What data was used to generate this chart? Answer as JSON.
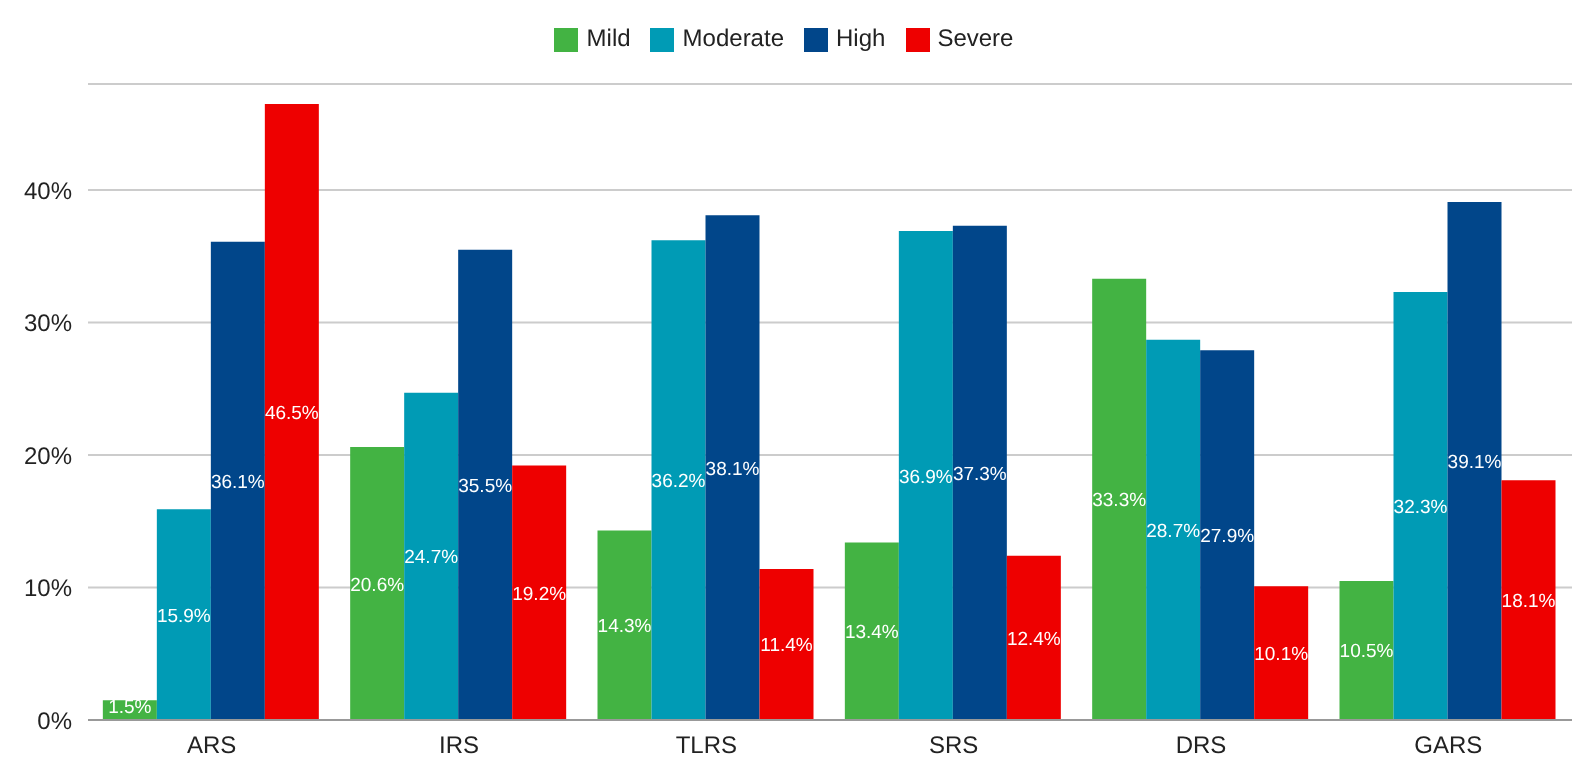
{
  "chart_data": {
    "type": "bar",
    "categories": [
      "ARS",
      "IRS",
      "TLRS",
      "SRS",
      "DRS",
      "GARS"
    ],
    "series": [
      {
        "name": "Mild",
        "color": "#43b343",
        "values": [
          1.5,
          20.6,
          14.3,
          13.4,
          33.3,
          10.5
        ],
        "value_labels": [
          "1.5%",
          "20.6%",
          "14.3%",
          "13.4%",
          "33.3%",
          "10.5%"
        ]
      },
      {
        "name": "Moderate",
        "color": "#009bb5",
        "values": [
          15.9,
          24.7,
          36.2,
          36.9,
          28.7,
          32.3
        ],
        "value_labels": [
          "15.9%",
          "24.7%",
          "36.2%",
          "36.9%",
          "28.7%",
          "32.3%"
        ]
      },
      {
        "name": "High",
        "color": "#01468a",
        "values": [
          36.1,
          35.5,
          38.1,
          37.3,
          27.9,
          39.1
        ],
        "value_labels": [
          "36.1%",
          "35.5%",
          "38.1%",
          "37.3%",
          "27.9%",
          "39.1%"
        ]
      },
      {
        "name": "Severe",
        "color": "#ee0000",
        "values": [
          46.5,
          19.2,
          11.4,
          12.4,
          10.1,
          18.1
        ],
        "value_labels": [
          "46.5%",
          "19.2%",
          "11.4%",
          "12.4%",
          "10.1%",
          "18.1%"
        ]
      }
    ],
    "ylim": [
      0,
      48
    ],
    "yticks": [
      {
        "value": 0,
        "label": "0%"
      },
      {
        "value": 10,
        "label": "10%"
      },
      {
        "value": 20,
        "label": "20%"
      },
      {
        "value": 30,
        "label": "30%"
      },
      {
        "value": 40,
        "label": "40%"
      }
    ],
    "grid": "y",
    "legend": "top"
  }
}
